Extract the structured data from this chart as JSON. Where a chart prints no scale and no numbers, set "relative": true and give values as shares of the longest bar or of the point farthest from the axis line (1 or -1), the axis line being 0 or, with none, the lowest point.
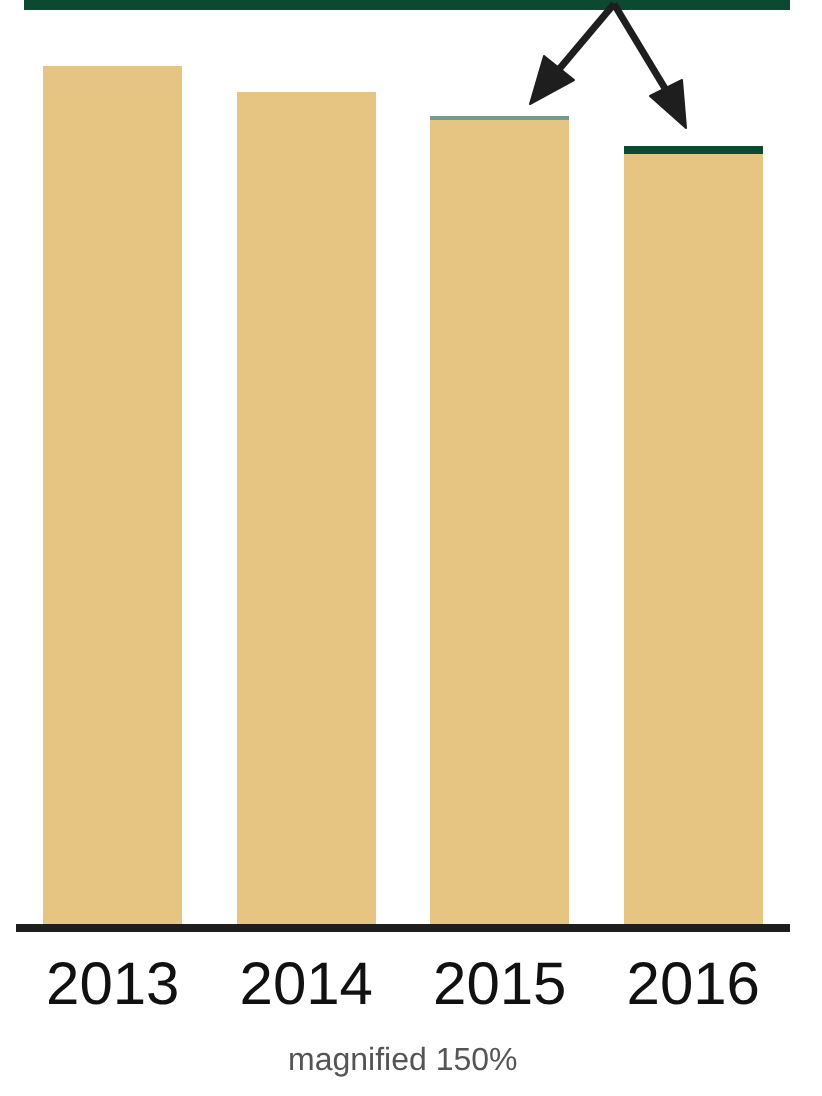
{
  "chart_data": {
    "type": "bar",
    "relative": true,
    "stacked": true,
    "categories": [
      "2013",
      "2014",
      "2015",
      "2016"
    ],
    "series": [
      {
        "color": "#e6c583",
        "values": [
          1,
          0.97,
          0.937,
          0.897
        ]
      },
      {
        "colors": [
          "#7a9a88",
          "#7a9a88",
          "#7a9a88",
          "#0b4a30"
        ],
        "values": [
          null,
          null,
          0.005,
          0.01
        ]
      }
    ],
    "annotations": [
      "magnified 150%"
    ]
  }
}
